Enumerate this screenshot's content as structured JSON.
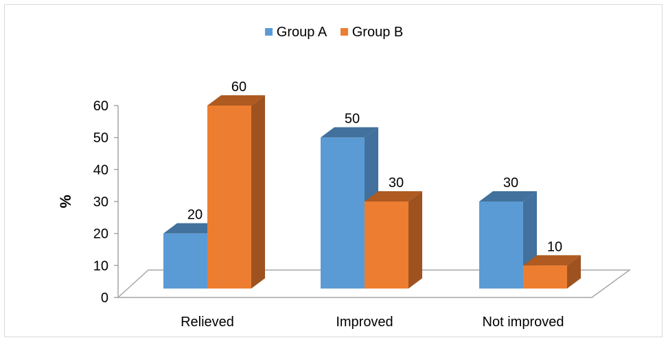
{
  "chart_data": {
    "type": "bar",
    "title": "",
    "xlabel": "",
    "ylabel": "%",
    "ylim": [
      0,
      60
    ],
    "yticks": [
      0,
      10,
      20,
      30,
      40,
      50,
      60
    ],
    "categories": [
      "Relieved",
      "Improved",
      "Not improved"
    ],
    "series": [
      {
        "name": "Group A",
        "values": [
          20,
          50,
          30
        ],
        "color": "#5b9bd5",
        "side_color": "#41719c",
        "top_color": "#41719c"
      },
      {
        "name": "Group B",
        "values": [
          60,
          30,
          10
        ],
        "color": "#ed7d31",
        "side_color": "#9e5220",
        "top_color": "#ae5a21"
      }
    ],
    "data_labels": true,
    "legend_position": "top",
    "style": "3d-clustered-column"
  }
}
